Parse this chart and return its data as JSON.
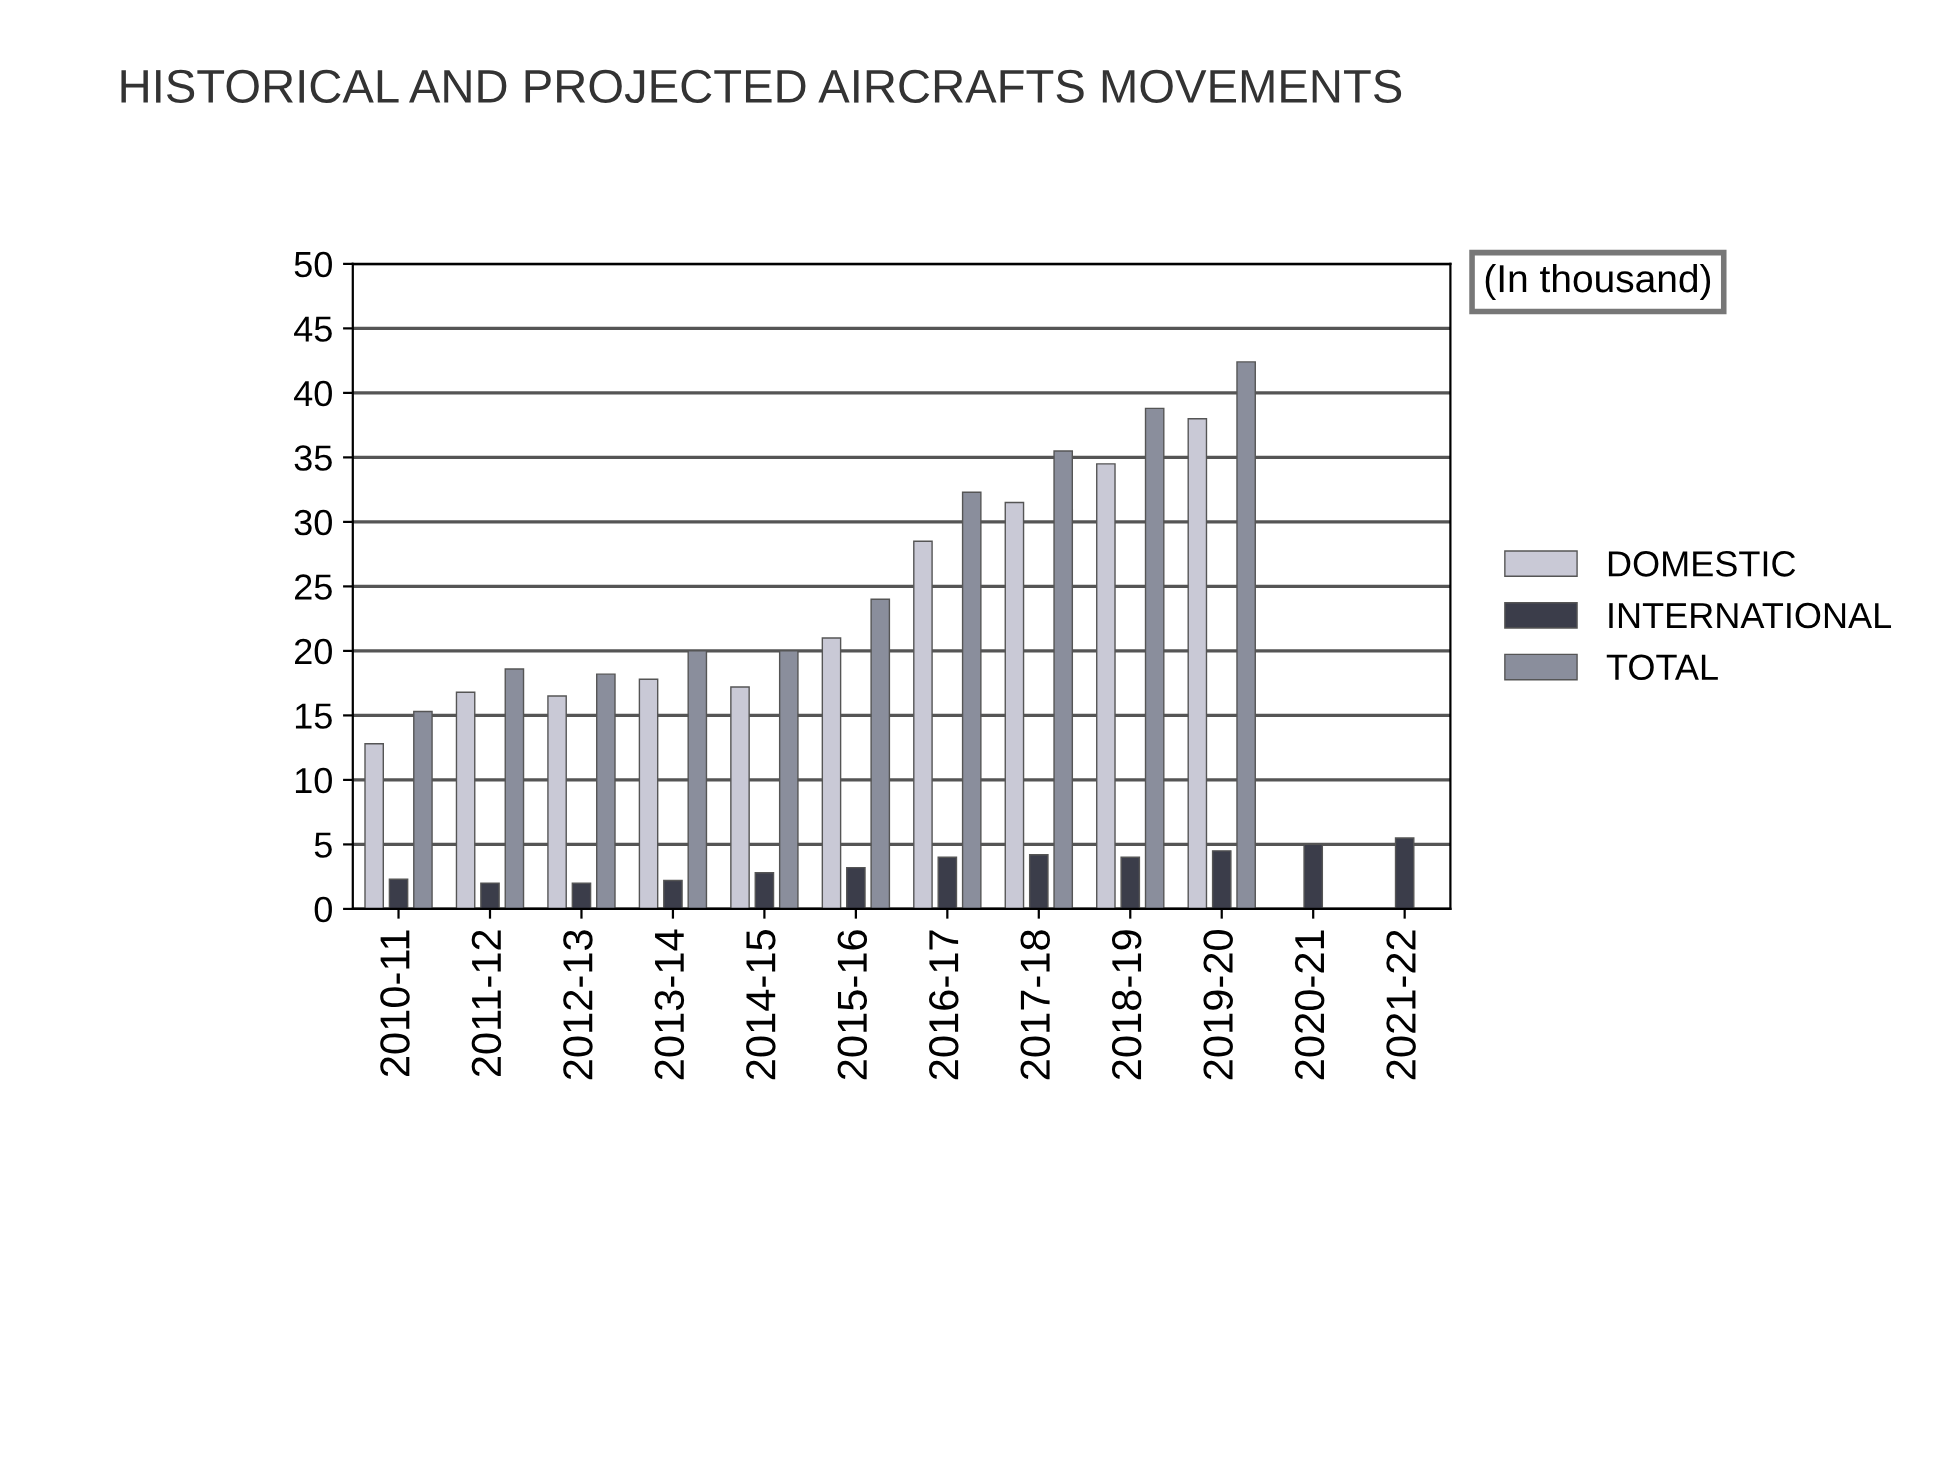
{
  "chart_data": {
    "type": "bar",
    "title": "HISTORICAL AND PROJECTED AIRCRAFTS MOVEMENTS",
    "categories": [
      "2010-11",
      "2011-12",
      "2012-13",
      "2013-14",
      "2014-15",
      "2015-16",
      "2016-17",
      "2017-18",
      "2018-19",
      "2019-20",
      "2020-21",
      "2021-22"
    ],
    "series": [
      {
        "name": "DOMESTIC",
        "color": "#c9c9d6",
        "values": [
          12.8,
          16.8,
          16.5,
          17.8,
          17.2,
          21,
          28.5,
          31.5,
          34.5,
          38,
          null,
          null
        ]
      },
      {
        "name": "INTERNATIONAL",
        "color": "#3b3d4a",
        "values": [
          2.3,
          2,
          2,
          2.2,
          2.8,
          3.2,
          4,
          4.2,
          4,
          4.5,
          5,
          5.5
        ]
      },
      {
        "name": "TOTAL",
        "color": "#8a8e9c",
        "values": [
          15.3,
          18.6,
          18.2,
          20,
          20,
          24,
          32.3,
          35.5,
          38.8,
          42.4,
          null,
          null
        ]
      }
    ],
    "ylim": [
      0,
      50
    ],
    "yticks": [
      0,
      5,
      10,
      15,
      20,
      25,
      30,
      35,
      40,
      45,
      50
    ],
    "grid": "y",
    "legend": "right",
    "annotations": [
      "(In thousand)"
    ]
  }
}
